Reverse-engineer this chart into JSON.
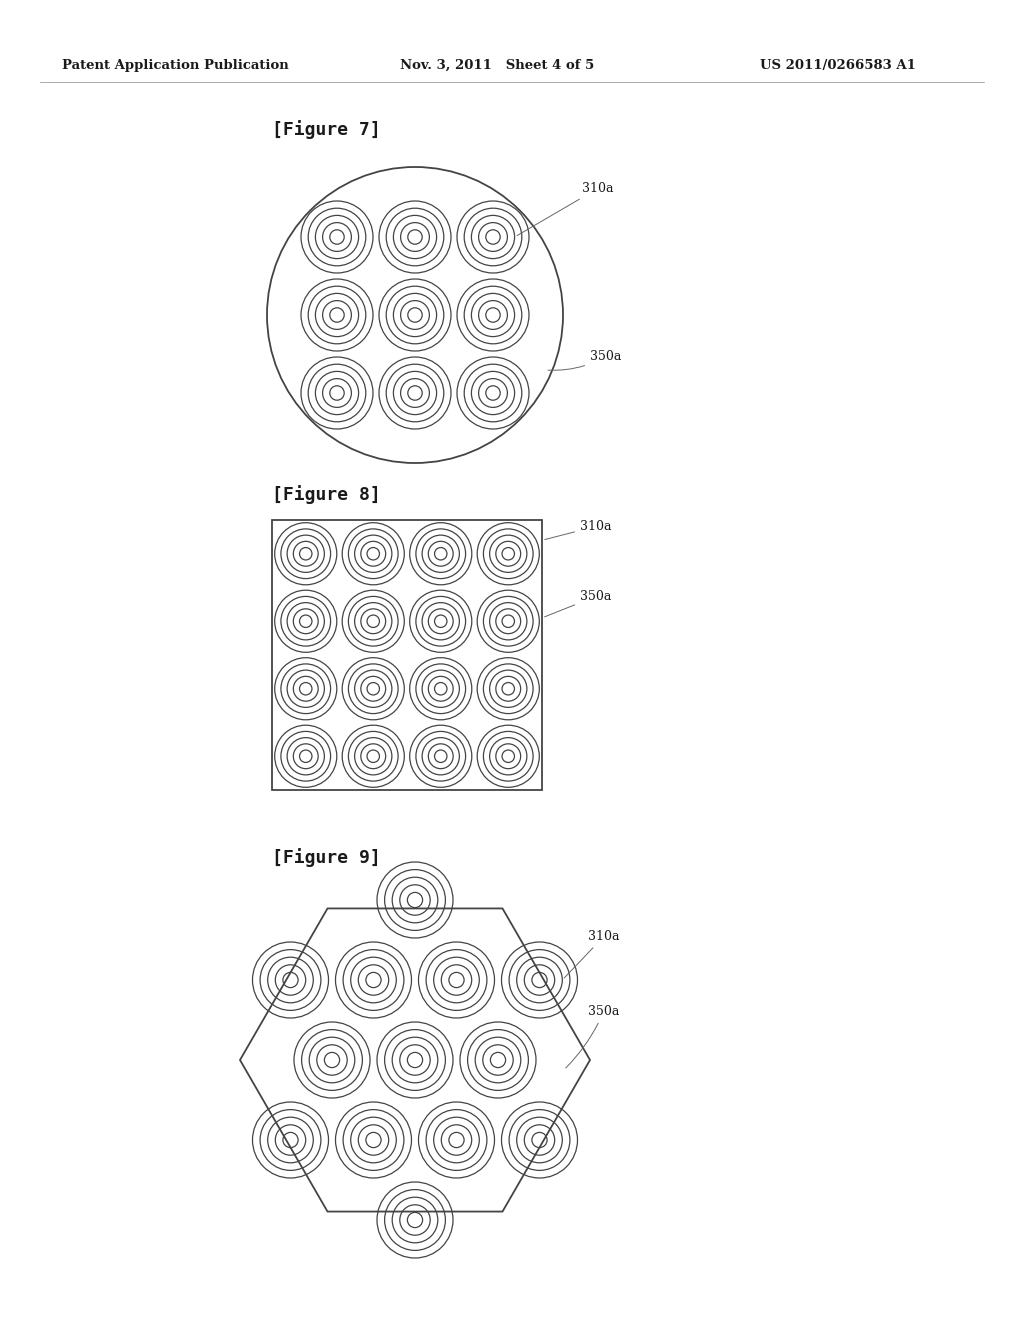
{
  "bg_color": "#ffffff",
  "text_color": "#1a1a1a",
  "header_left": "Patent Application Publication",
  "header_mid": "Nov. 3, 2011   Sheet 4 of 5",
  "header_right": "US 2011/0266583 A1",
  "fig7_title": "[Figure 7]",
  "fig8_title": "[Figure 8]",
  "fig9_title": "[Figure 9]",
  "label_310a": "310a",
  "label_350a": "350a",
  "ring_color": "#444444",
  "ring_linewidth": 0.9,
  "num_rings": 5,
  "container_linewidth": 1.3
}
